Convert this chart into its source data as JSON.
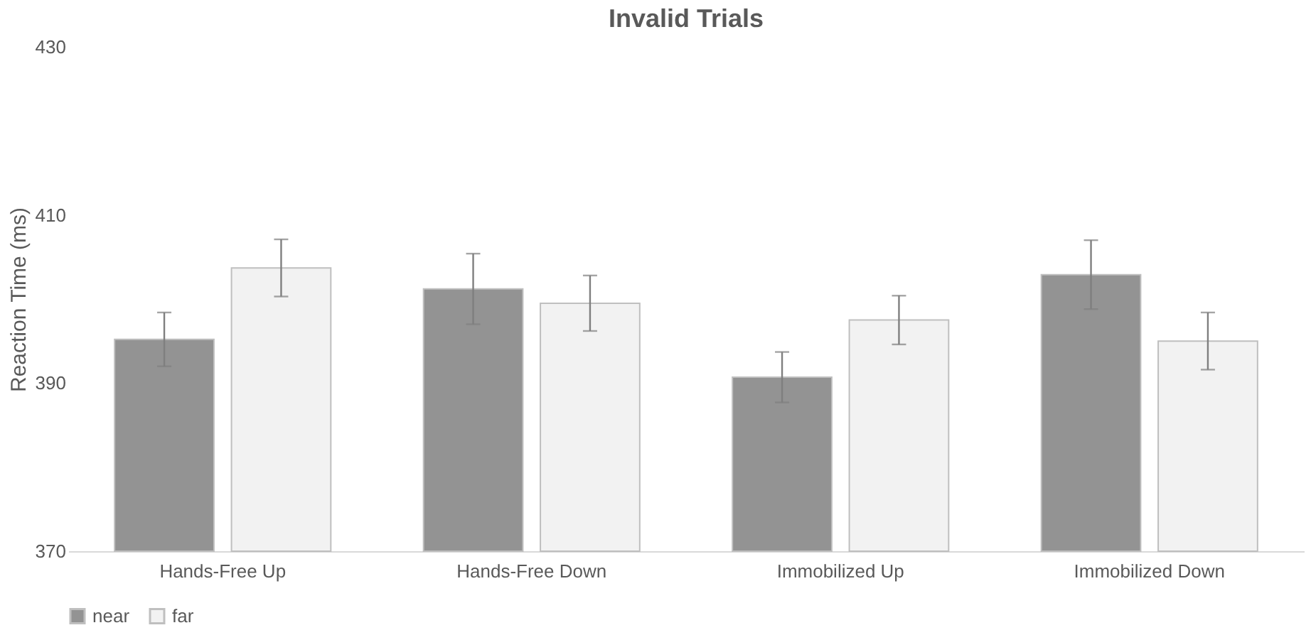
{
  "chart_data": {
    "type": "bar",
    "title": "Invalid Trials",
    "ylabel": "Reaction Time (ms)",
    "categories": [
      "Hands-Free Up",
      "Hands-Free Down",
      "Immobilized Up",
      "Immobilized Down"
    ],
    "series": [
      {
        "name": "near",
        "color": "#939393",
        "values": [
          395.2,
          401.2,
          390.7,
          402.9
        ],
        "errors": [
          3.2,
          4.2,
          3.0,
          4.1
        ]
      },
      {
        "name": "far",
        "color": "#f2f2f2",
        "values": [
          403.7,
          399.5,
          397.5,
          395.0
        ],
        "errors": [
          3.4,
          3.3,
          2.9,
          3.4
        ]
      }
    ],
    "ylim": [
      370,
      430
    ],
    "yticks": [
      370,
      390,
      410,
      430
    ],
    "grid": false,
    "legend": "bottom"
  }
}
